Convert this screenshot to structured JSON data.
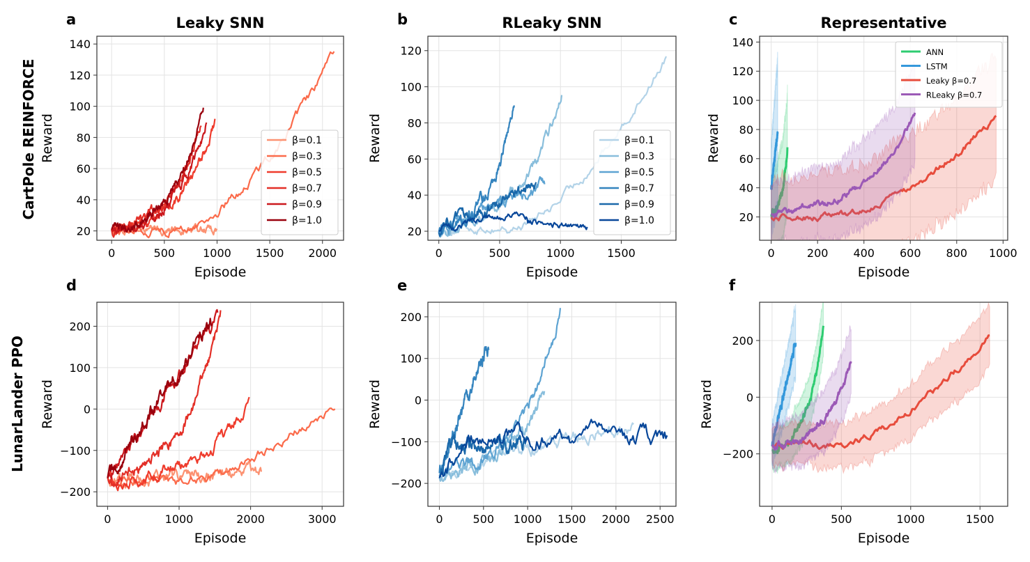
{
  "rows": {
    "top": "CartPole REINFORCE",
    "bottom": "LunarLander PPO"
  },
  "colors": {
    "reds": [
      "#fc9272",
      "#fb6a4a",
      "#ef3b2c",
      "#e32f27",
      "#cb181d",
      "#99000d"
    ],
    "blues": [
      "#b3d3e8",
      "#89bedc",
      "#5da3d2",
      "#3383be",
      "#1a68aa",
      "#08479a"
    ],
    "ANN": "#2ecc71",
    "LSTM": "#3498db",
    "Leaky": "#e74c3c",
    "RLeaky": "#9b59b6"
  },
  "chart_data": [
    {
      "id": "a",
      "panel_label": "a",
      "type": "line",
      "title": "Leaky SNN",
      "xlabel": "Episode",
      "ylabel": "Reward",
      "xlim": [
        -140,
        2200
      ],
      "ylim": [
        14,
        145
      ],
      "xticks": [
        0,
        500,
        1000,
        1500,
        2000
      ],
      "yticks": [
        20,
        40,
        60,
        80,
        100,
        120,
        140
      ],
      "legend": "lower-right",
      "palette": "reds",
      "series": [
        {
          "name": "β=0.1",
          "end_x": 1000,
          "start_y": 20,
          "end_y": 21,
          "shape": "flat",
          "noise": 2
        },
        {
          "name": "β=0.3",
          "end_x": 2110,
          "start_y": 20,
          "end_y": 133,
          "shape": "late",
          "noise": 2.5
        },
        {
          "name": "β=0.5",
          "end_x": 980,
          "start_y": 20,
          "end_y": 90,
          "shape": "exp",
          "noise": 2.5
        },
        {
          "name": "β=0.7",
          "end_x": 850,
          "start_y": 20,
          "end_y": 92,
          "shape": "exp",
          "noise": 2.5
        },
        {
          "name": "β=0.9",
          "end_x": 900,
          "start_y": 20,
          "end_y": 90,
          "shape": "exp",
          "noise": 2.5
        },
        {
          "name": "β=1.0",
          "end_x": 870,
          "start_y": 20,
          "end_y": 101,
          "shape": "exp",
          "noise": 2.5
        }
      ]
    },
    {
      "id": "b",
      "panel_label": "b",
      "type": "line",
      "title": "RLeaky SNN",
      "xlabel": "Episode",
      "ylabel": "Reward",
      "xlim": [
        -90,
        1950
      ],
      "ylim": [
        15,
        128
      ],
      "xticks": [
        0,
        500,
        1000,
        1500
      ],
      "yticks": [
        20,
        40,
        60,
        80,
        100,
        120
      ],
      "legend": "lower-right",
      "palette": "blues",
      "series": [
        {
          "name": "β=0.1",
          "end_x": 1870,
          "start_y": 21,
          "end_y": 117,
          "shape": "late",
          "noise": 2
        },
        {
          "name": "β=0.3",
          "end_x": 1010,
          "start_y": 21,
          "end_y": 97,
          "shape": "exp",
          "noise": 2.5
        },
        {
          "name": "β=0.5",
          "end_x": 870,
          "start_y": 21,
          "end_y": 46,
          "shape": "lin",
          "noise": 2.5
        },
        {
          "name": "β=0.7",
          "end_x": 620,
          "start_y": 21,
          "end_y": 91,
          "shape": "exp",
          "noise": 2.5
        },
        {
          "name": "β=0.9",
          "end_x": 800,
          "start_y": 21,
          "end_y": 46,
          "shape": "lin",
          "noise": 2.5
        },
        {
          "name": "β=1.0",
          "end_x": 1220,
          "start_y": 21,
          "end_y": 23,
          "shape": "bump",
          "noise": 1.5
        }
      ]
    },
    {
      "id": "c",
      "panel_label": "c",
      "type": "line",
      "title": "Representative",
      "xlabel": "Episode",
      "ylabel": "Reward",
      "xlim": [
        -50,
        1020
      ],
      "ylim": [
        4,
        144
      ],
      "xticks": [
        0,
        200,
        400,
        600,
        800,
        1000
      ],
      "yticks": [
        20,
        40,
        60,
        80,
        100,
        120,
        140
      ],
      "legend": "upper-right",
      "series": [
        {
          "name": "ANN",
          "color_key": "ANN",
          "end_x": 70,
          "start_y": 22,
          "end_y": 67,
          "shape": "exp",
          "noise": 1.5,
          "band": 35
        },
        {
          "name": "LSTM",
          "color_key": "LSTM",
          "end_x": 28,
          "start_y": 39,
          "end_y": 80,
          "shape": "lin",
          "noise": 1.5,
          "band": 45
        },
        {
          "name": "Leaky β=0.7",
          "color_key": "Leaky",
          "end_x": 970,
          "start_y": 20,
          "end_y": 90,
          "shape": "late",
          "noise": 2,
          "band": 38
        },
        {
          "name": "RLeaky β=0.7",
          "color_key": "RLeaky",
          "end_x": 620,
          "start_y": 22,
          "end_y": 91,
          "shape": "exp",
          "noise": 2,
          "band": 30
        }
      ]
    },
    {
      "id": "d",
      "panel_label": "d",
      "type": "line",
      "title": "",
      "xlabel": "Episode",
      "ylabel": "Reward",
      "xlim": [
        -150,
        3300
      ],
      "ylim": [
        -235,
        258
      ],
      "xticks": [
        0,
        1000,
        2000,
        3000
      ],
      "yticks": [
        -200,
        -100,
        0,
        100,
        200
      ],
      "palette": "reds",
      "series": [
        {
          "name": "β=0.1",
          "end_x": 2150,
          "start_y": -170,
          "end_y": -150,
          "shape": "flat",
          "noise": 14
        },
        {
          "name": "β=0.3",
          "end_x": 3180,
          "start_y": -175,
          "end_y": 10,
          "shape": "late",
          "noise": 10
        },
        {
          "name": "β=0.5",
          "end_x": 1980,
          "start_y": -175,
          "end_y": 25,
          "shape": "exp",
          "noise": 12
        },
        {
          "name": "β=0.7",
          "end_x": 1580,
          "start_y": -170,
          "end_y": 230,
          "shape": "exp",
          "noise": 12
        },
        {
          "name": "β=0.9",
          "end_x": 1540,
          "start_y": -170,
          "end_y": 225,
          "shape": "lin",
          "noise": 12
        },
        {
          "name": "β=1.0",
          "end_x": 1460,
          "start_y": -175,
          "end_y": 215,
          "shape": "lin",
          "noise": 14
        }
      ]
    },
    {
      "id": "e",
      "panel_label": "e",
      "type": "line",
      "title": "",
      "xlabel": "Episode",
      "ylabel": "Reward",
      "xlim": [
        -130,
        2680
      ],
      "ylim": [
        -255,
        235
      ],
      "xticks": [
        0,
        500,
        1000,
        1500,
        2000,
        2500
      ],
      "yticks": [
        -200,
        -100,
        0,
        100,
        200
      ],
      "palette": "blues",
      "series": [
        {
          "name": "β=0.1",
          "end_x": 2200,
          "start_y": -175,
          "end_y": -60,
          "shape": "flat",
          "noise": 14
        },
        {
          "name": "β=0.3",
          "end_x": 1190,
          "start_y": -180,
          "end_y": 25,
          "shape": "exp",
          "noise": 12
        },
        {
          "name": "β=0.5",
          "end_x": 1370,
          "start_y": -175,
          "end_y": 210,
          "shape": "exp",
          "noise": 12
        },
        {
          "name": "β=0.7",
          "end_x": 560,
          "start_y": -170,
          "end_y": 135,
          "shape": "lin",
          "noise": 12
        },
        {
          "name": "β=0.9",
          "end_x": 1000,
          "start_y": -175,
          "end_y": -105,
          "shape": "step",
          "noise": 14
        },
        {
          "name": "β=1.0",
          "end_x": 2580,
          "start_y": -180,
          "end_y": -90,
          "shape": "step",
          "noise": 18
        }
      ]
    },
    {
      "id": "f",
      "panel_label": "f",
      "type": "line",
      "title": "",
      "xlabel": "Episode",
      "ylabel": "Reward",
      "xlim": [
        -90,
        1700
      ],
      "ylim": [
        -385,
        335
      ],
      "xticks": [
        0,
        500,
        1000,
        1500
      ],
      "yticks": [
        -200,
        0,
        200
      ],
      "series": [
        {
          "name": "ANN",
          "color_key": "ANN",
          "end_x": 370,
          "start_y": -190,
          "end_y": 240,
          "shape": "exp",
          "noise": 10,
          "band": 90
        },
        {
          "name": "LSTM",
          "color_key": "LSTM",
          "end_x": 170,
          "start_y": -175,
          "end_y": 195,
          "shape": "lin",
          "noise": 10,
          "band": 110
        },
        {
          "name": "Leaky β=0.7",
          "color_key": "Leaky",
          "end_x": 1570,
          "start_y": -170,
          "end_y": 225,
          "shape": "late",
          "noise": 10,
          "band": 100
        },
        {
          "name": "RLeaky β=0.7",
          "color_key": "RLeaky",
          "end_x": 570,
          "start_y": -175,
          "end_y": 130,
          "shape": "exp",
          "noise": 10,
          "band": 110
        }
      ]
    }
  ]
}
